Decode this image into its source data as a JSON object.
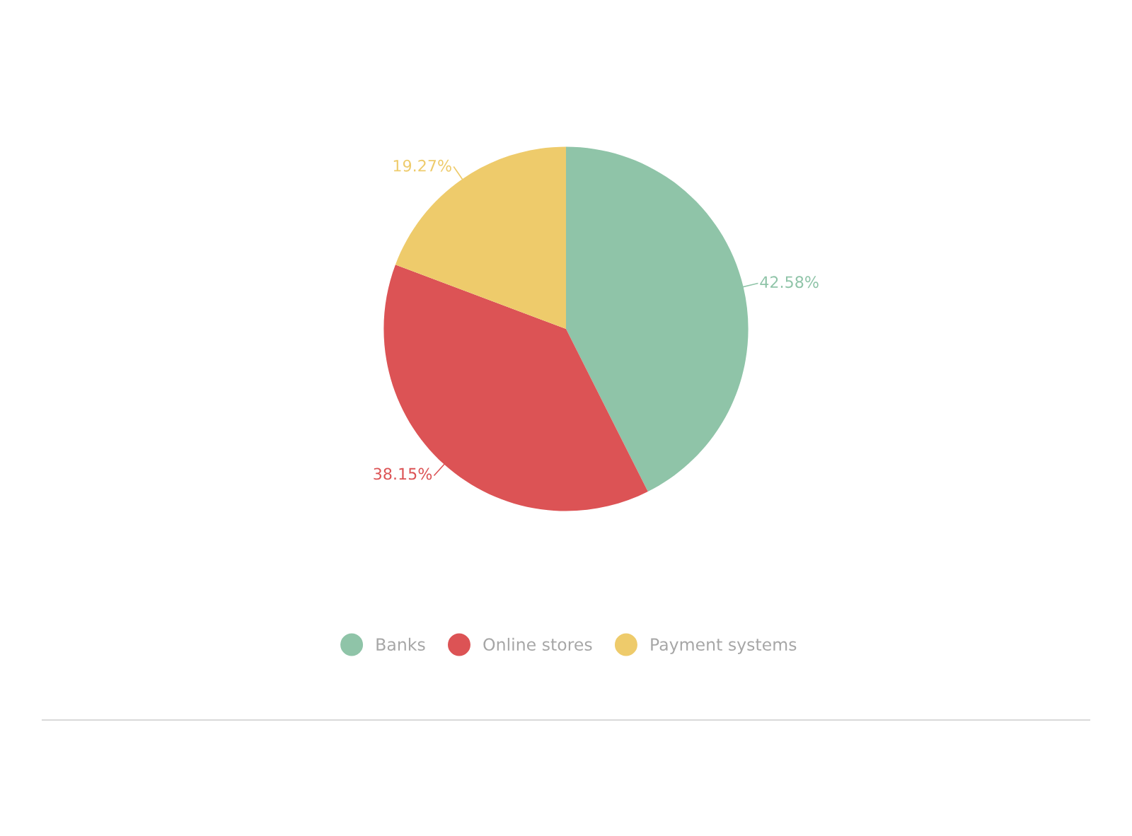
{
  "chart_data": {
    "type": "pie",
    "categories": [
      "Banks",
      "Online stores",
      "Payment systems"
    ],
    "values": [
      42.58,
      38.15,
      19.27
    ],
    "colors": [
      "#8fc4a8",
      "#dc5355",
      "#eecb6b"
    ],
    "value_labels": [
      "42.58%",
      "38.15%",
      "19.27%"
    ],
    "legend": "bottom"
  }
}
